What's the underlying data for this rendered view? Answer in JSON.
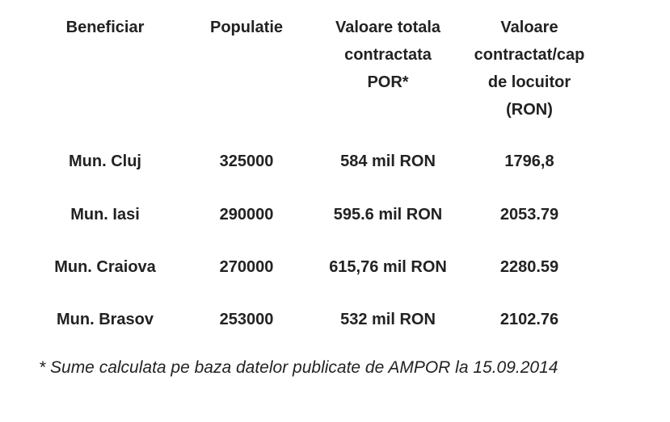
{
  "table": {
    "header": [
      [
        "Beneficiar"
      ],
      [
        "Populatie"
      ],
      [
        "Valoare totala",
        "contractata",
        "POR*"
      ],
      [
        "Valoare",
        "contractat/cap",
        "de locuitor",
        "(RON)"
      ]
    ],
    "rows": [
      [
        "Mun. Cluj",
        "325000",
        "584 mil RON",
        "1796,8"
      ],
      [
        "Mun. Iasi",
        "290000",
        "595.6 mil RON",
        "2053.79"
      ],
      [
        "Mun. Craiova",
        "270000",
        "615,76 mil RON",
        "2280.59"
      ],
      [
        "Mun. Brasov",
        "253000",
        "532 mil RON",
        "2102.76"
      ]
    ]
  },
  "footnote": "* Sume calculata pe baza datelor publicate de AMPOR la 15.09.2014"
}
